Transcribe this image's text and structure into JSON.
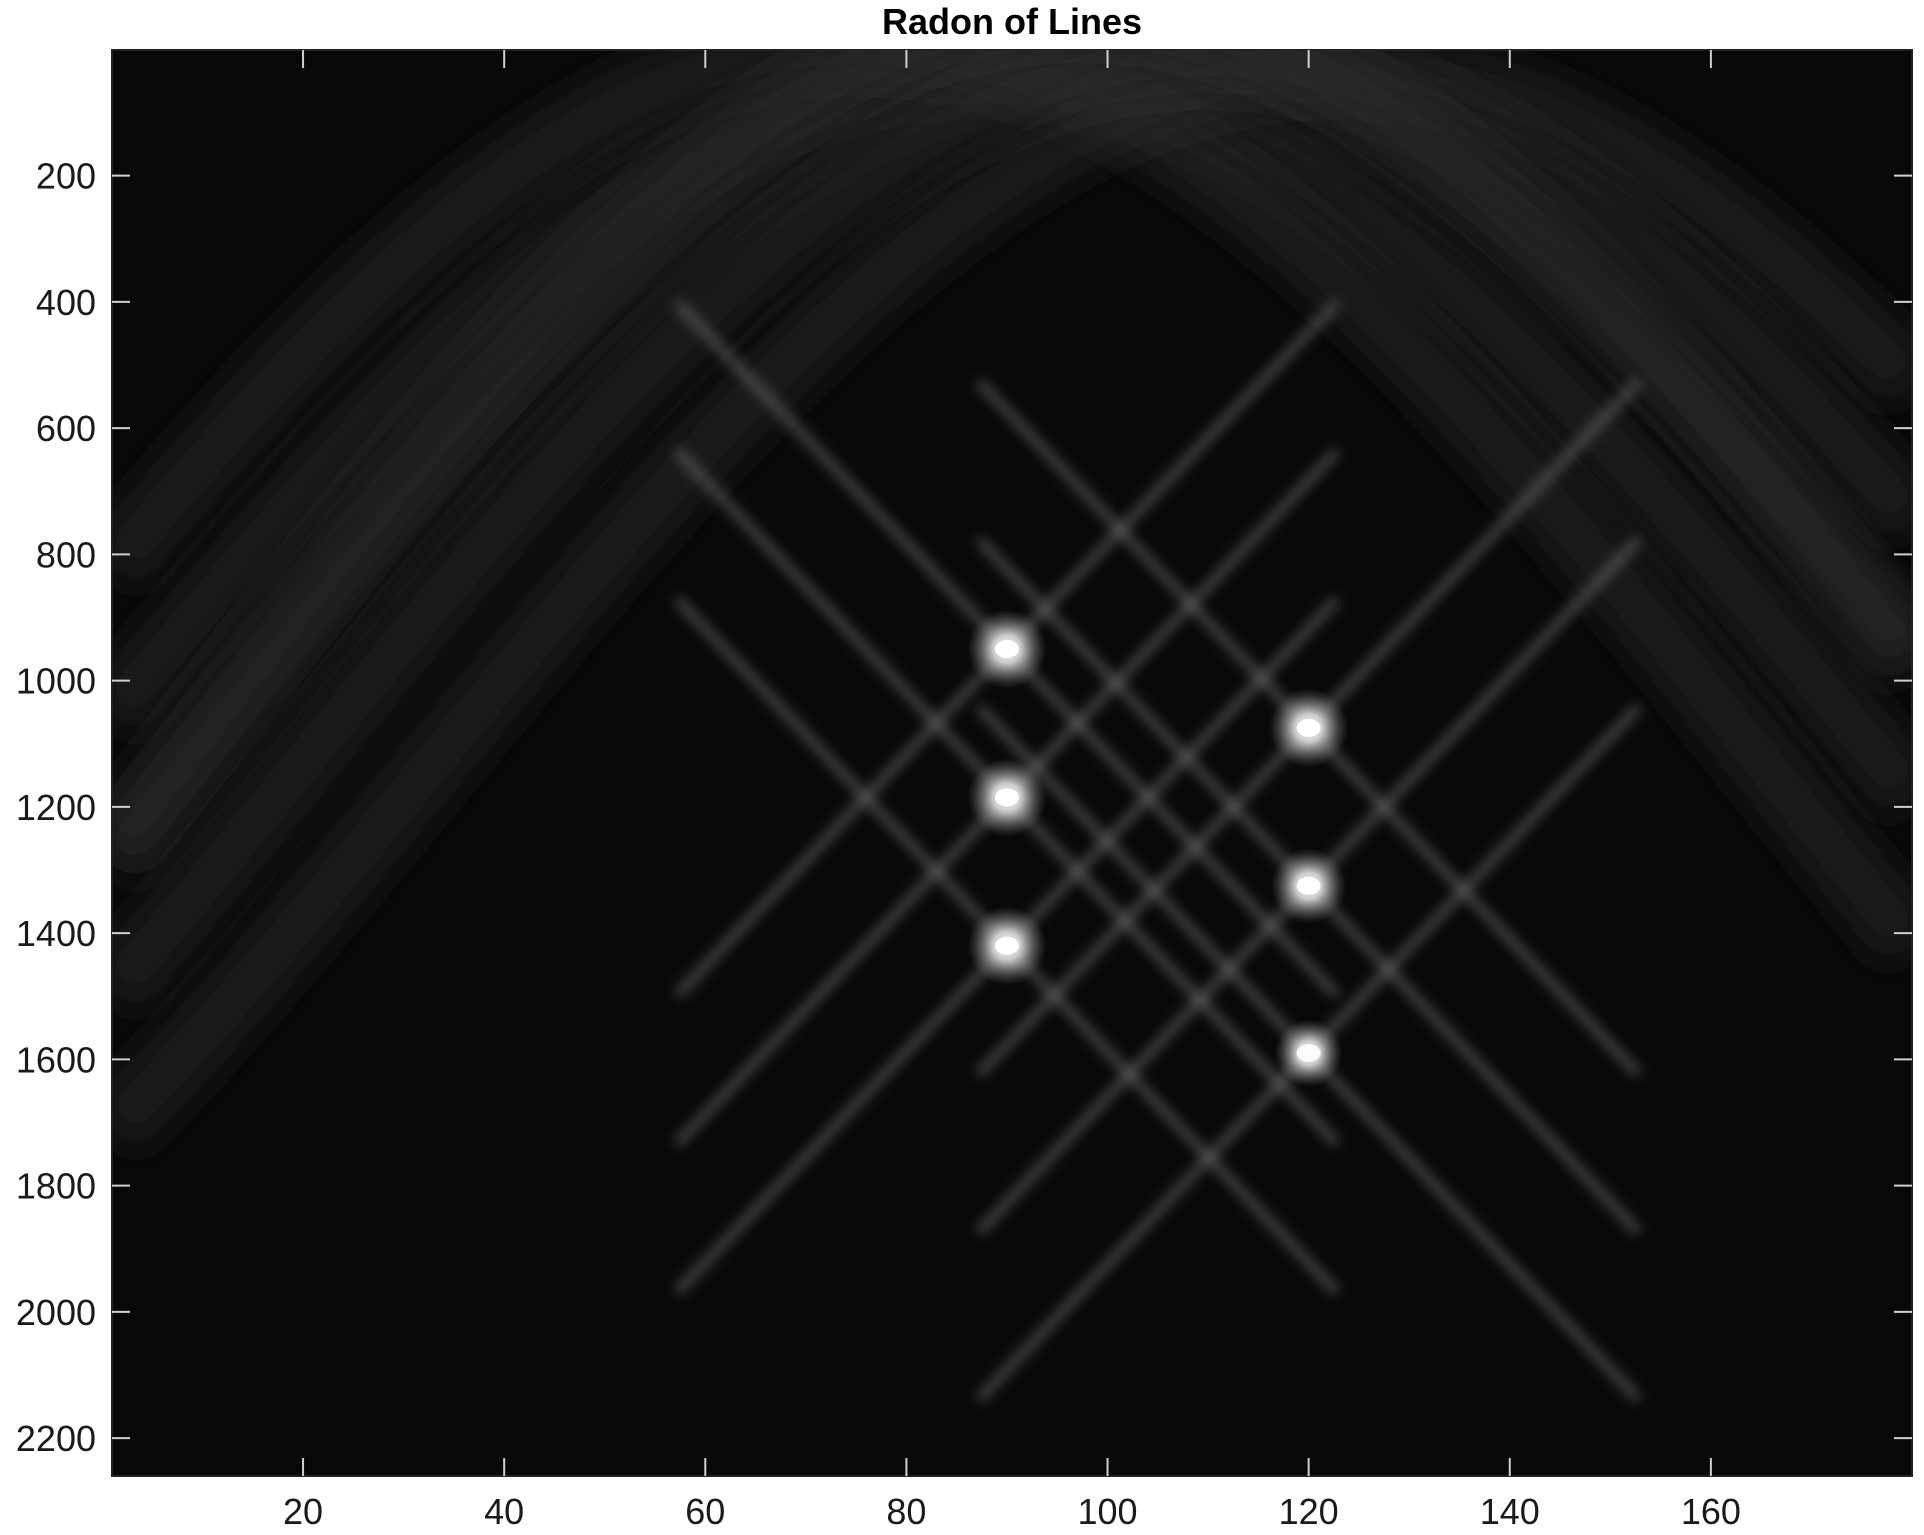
{
  "chart_data": {
    "type": "heatmap",
    "title": "Radon of Lines",
    "xlabel": "",
    "ylabel": "",
    "x_range": [
      1,
      180
    ],
    "y_range": [
      1,
      2260
    ],
    "y_reversed": true,
    "x_ticks": [
      20,
      40,
      60,
      80,
      100,
      120,
      140,
      160
    ],
    "y_ticks": [
      200,
      400,
      600,
      800,
      1000,
      1200,
      1400,
      1600,
      1800,
      2000,
      2200
    ],
    "colormap": "gray",
    "peaks": [
      {
        "theta": 90,
        "rho": 950,
        "intensity": 1.0
      },
      {
        "theta": 90,
        "rho": 1185,
        "intensity": 1.0
      },
      {
        "theta": 90,
        "rho": 1420,
        "intensity": 1.0
      },
      {
        "theta": 120,
        "rho": 1075,
        "intensity": 1.0
      },
      {
        "theta": 120,
        "rho": 1325,
        "intensity": 0.95
      },
      {
        "theta": 120,
        "rho": 1590,
        "intensity": 0.85
      }
    ],
    "background_color": "#080808",
    "band_color": "#2a2a2a"
  }
}
